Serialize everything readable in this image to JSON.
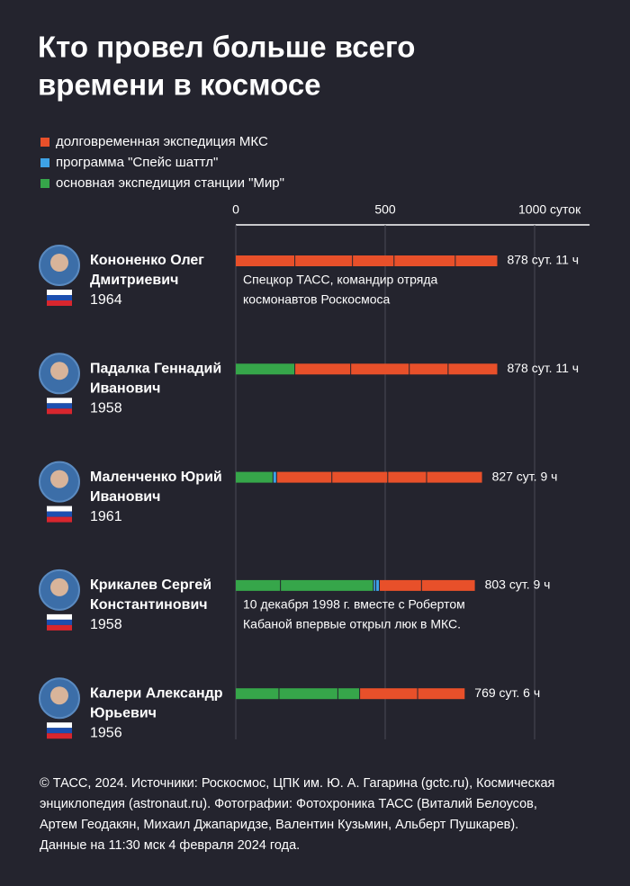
{
  "chart_data": {
    "type": "stacked-bar",
    "title_lines": [
      "Кто провел больше всего",
      "времени в космосе"
    ],
    "legend": [
      {
        "name": "долговременная экспедиция МКС",
        "color": "#e8502a"
      },
      {
        "name": "программа \"Спейс шаттл\"",
        "color": "#3ea2e6"
      },
      {
        "name": "основная экспедиция станции \"Мир\"",
        "color": "#36a64a"
      }
    ],
    "xlim": [
      0,
      1184
    ],
    "xticks": [
      0,
      500,
      {
        "value": 1000,
        "label": "1000 суток"
      }
    ],
    "grid": true,
    "people": [
      {
        "name_lines": [
          "Кононенко Олег",
          "Дмитриевич"
        ],
        "year": "1964",
        "segments": [
          {
            "color": "#e8502a",
            "value": 199
          },
          {
            "color": "#e8502a",
            "value": 193
          },
          {
            "color": "#e8502a",
            "value": 139
          },
          {
            "color": "#e8502a",
            "value": 205
          },
          {
            "color": "#e8502a",
            "value": 142
          }
        ],
        "total": {
          "value": 878,
          "label": "878 сут. 11 ч"
        },
        "note_lines": [
          "Спецкор ТАСС, командир отряда",
          "космонавтов Роскосмоса"
        ]
      },
      {
        "name_lines": [
          "Падалка Геннадий",
          "Иванович"
        ],
        "year": "1958",
        "segments": [
          {
            "color": "#36a64a",
            "value": 199
          },
          {
            "color": "#e8502a",
            "value": 187
          },
          {
            "color": "#e8502a",
            "value": 196
          },
          {
            "color": "#e8502a",
            "value": 130
          },
          {
            "color": "#e8502a",
            "value": 166
          }
        ],
        "total": {
          "value": 878,
          "label": "878 сут. 11 ч"
        }
      },
      {
        "name_lines": [
          "Маленченко Юрий",
          "Иванович"
        ],
        "year": "1961",
        "segments": [
          {
            "color": "#36a64a",
            "value": 126
          },
          {
            "color": "#3ea2e6",
            "value": 12
          },
          {
            "color": "#e8502a",
            "value": 185
          },
          {
            "color": "#e8502a",
            "value": 187
          },
          {
            "color": "#e8502a",
            "value": 130
          },
          {
            "color": "#e8502a",
            "value": 187
          }
        ],
        "total": {
          "value": 827,
          "label": "827 сут. 9 ч"
        }
      },
      {
        "name_lines": [
          "Крикалев Сергей",
          "Константинович"
        ],
        "year": "1958",
        "segments": [
          {
            "color": "#36a64a",
            "value": 151
          },
          {
            "color": "#36a64a",
            "value": 311
          },
          {
            "color": "#3ea2e6",
            "value": 8
          },
          {
            "color": "#3ea2e6",
            "value": 12
          },
          {
            "color": "#e8502a",
            "value": 141
          },
          {
            "color": "#e8502a",
            "value": 180
          }
        ],
        "total": {
          "value": 803,
          "label": "803 сут. 9 ч"
        },
        "note_lines": [
          "10 декабря 1998 г. вместе с Робертом",
          "Кабаной впервые открыл люк в МКС."
        ]
      },
      {
        "name_lines": [
          "Калери Александр",
          "Юрьевич"
        ],
        "year": "1956",
        "segments": [
          {
            "color": "#36a64a",
            "value": 146
          },
          {
            "color": "#36a64a",
            "value": 197
          },
          {
            "color": "#36a64a",
            "value": 73
          },
          {
            "color": "#e8502a",
            "value": 194
          },
          {
            "color": "#e8502a",
            "value": 159
          }
        ],
        "total": {
          "value": 769,
          "label": "769 сут. 6 ч"
        }
      }
    ],
    "footer_lines": [
      "© ТАСС, 2024. Источники: Роскосмос, ЦПК им. Ю. А. Гагарина (gctc.ru), Космическая",
      "энциклопедия (astronaut.ru). Фотографии: Фотохроника ТАСС (Виталий Белоусов,",
      "Артем Геодакян, Михаил Джапаридзе, Валентин Кузьмин, Альберт Пушкарев).",
      "Данные на 11:30 мск 4 февраля 2024 года."
    ]
  }
}
